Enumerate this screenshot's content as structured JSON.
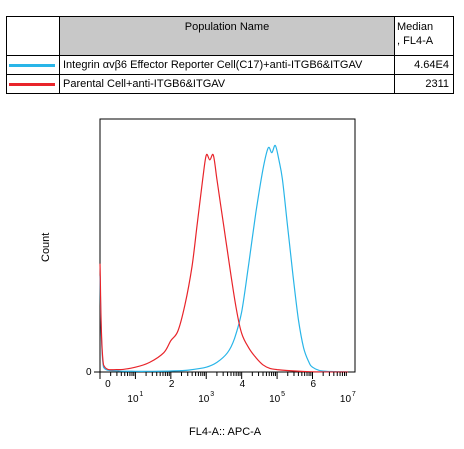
{
  "legend": {
    "header_name": "Population Name",
    "header_median_line1": "Median",
    "header_median_line2": ", FL4-A",
    "rows": [
      {
        "name": "Integrin αvβ6 Effector Reporter Cell(C17)+anti-ITGB6&ITGAV",
        "median": "4.64E4",
        "color": "#29b5e8"
      },
      {
        "name": "Parental Cell+anti-ITGB6&ITGAV",
        "median": "2311",
        "color": "#e8242a"
      }
    ]
  },
  "chart_data": {
    "type": "line",
    "title": "",
    "xlabel": "FL4-A:: APC-A",
    "ylabel": "Count",
    "x_scale": "log",
    "xlim": [
      0,
      7.2
    ],
    "ylim": [
      0,
      100
    ],
    "x_ticks": [
      {
        "base": "10",
        "exp": "1",
        "pos": 1
      },
      {
        "base": "10",
        "exp": "3",
        "pos": 3
      },
      {
        "base": "10",
        "exp": "5",
        "pos": 5
      },
      {
        "base": "10",
        "exp": "7",
        "pos": 7
      }
    ],
    "x_tick_minor_labels": [
      {
        "label": "0",
        "pos": 0.2
      },
      {
        "label": "2",
        "pos": 2
      },
      {
        "label": "4",
        "pos": 4
      },
      {
        "label": "6",
        "pos": 6
      }
    ],
    "y_ticks": [
      {
        "label": "0",
        "value": 0
      }
    ],
    "series": [
      {
        "name": "Integrin αvβ6 Effector Reporter Cell(C17)+anti-ITGB6&ITGAV",
        "color": "#29b5e8",
        "x": [
          0.0,
          0.1,
          0.5,
          1.0,
          1.5,
          2.0,
          2.5,
          3.0,
          3.3,
          3.6,
          3.8,
          4.0,
          4.2,
          4.4,
          4.6,
          4.75,
          4.85,
          4.95,
          5.05,
          5.15,
          5.3,
          5.45,
          5.6,
          5.75,
          5.9,
          6.0,
          6.2,
          6.5,
          7.0
        ],
        "y": [
          40,
          2,
          0.5,
          0.3,
          0.3,
          0.4,
          0.8,
          2,
          4,
          8,
          14,
          25,
          45,
          66,
          84,
          93,
          91,
          94,
          88,
          80,
          60,
          40,
          22,
          10,
          4,
          2,
          0.6,
          0.2,
          0.1
        ]
      },
      {
        "name": "Parental Cell+anti-ITGB6&ITGAV",
        "color": "#e8242a",
        "x": [
          0.0,
          0.1,
          0.5,
          1.0,
          1.4,
          1.8,
          2.0,
          2.2,
          2.4,
          2.6,
          2.75,
          2.9,
          3.0,
          3.1,
          3.2,
          3.3,
          3.4,
          3.55,
          3.7,
          3.85,
          4.0,
          4.2,
          4.4,
          4.6,
          4.8,
          5.0,
          5.5,
          6.0,
          7.0
        ],
        "y": [
          45,
          3,
          1,
          2,
          4,
          8,
          13,
          17,
          28,
          44,
          62,
          80,
          90,
          88,
          90,
          80,
          70,
          55,
          40,
          26,
          16,
          10,
          6,
          3,
          1.5,
          1,
          0.4,
          0.1,
          0
        ]
      }
    ]
  }
}
